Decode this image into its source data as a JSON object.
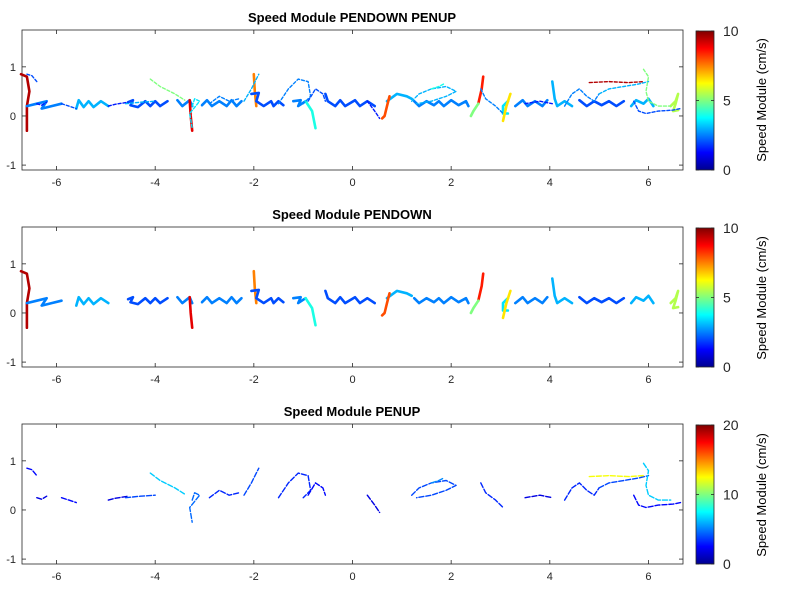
{
  "chart_data": [
    {
      "type": "scatter",
      "title": "Speed Module PENDOWN PENUP",
      "xlim": [
        -6.7,
        6.7
      ],
      "ylim": [
        -1.1,
        1.75
      ],
      "xticks": [
        -6,
        -4,
        -2,
        0,
        2,
        4,
        6
      ],
      "yticks": [
        -1,
        0,
        1
      ],
      "grid": false,
      "legend": "none",
      "colorbar": {
        "label": "Speed Module (cm/s)",
        "min": 0,
        "max": 10,
        "ticks": [
          0,
          5,
          10
        ],
        "colormap": "jet"
      },
      "strokes": "pendown+penup"
    },
    {
      "type": "scatter",
      "title": "Speed Module PENDOWN",
      "xlim": [
        -6.7,
        6.7
      ],
      "ylim": [
        -1.1,
        1.75
      ],
      "xticks": [
        -6,
        -4,
        -2,
        0,
        2,
        4,
        6
      ],
      "yticks": [
        -1,
        0,
        1
      ],
      "grid": false,
      "legend": "none",
      "colorbar": {
        "label": "Speed Module (cm/s)",
        "min": 0,
        "max": 10,
        "ticks": [
          0,
          5,
          10
        ],
        "colormap": "jet"
      },
      "strokes": "pendown"
    },
    {
      "type": "scatter",
      "title": "Speed Module PENUP",
      "xlim": [
        -6.7,
        6.7
      ],
      "ylim": [
        -1.1,
        1.75
      ],
      "xticks": [
        -6,
        -4,
        -2,
        0,
        2,
        4,
        6
      ],
      "yticks": [
        -1,
        0,
        1
      ],
      "grid": false,
      "legend": "none",
      "colorbar": {
        "label": "Speed Module (cm/s)",
        "min": 0,
        "max": 20,
        "ticks": [
          0,
          10,
          20
        ],
        "colormap": "jet"
      },
      "strokes": "penup"
    }
  ],
  "pendown_strokes": [
    {
      "speed": 9.5,
      "points": [
        [
          -6.72,
          0.85
        ],
        [
          -6.6,
          0.8
        ],
        [
          -6.55,
          0.5
        ],
        [
          -6.6,
          0.2
        ],
        [
          -6.6,
          -0.3
        ]
      ]
    },
    {
      "speed": 2.5,
      "points": [
        [
          -6.6,
          0.2
        ],
        [
          -6.4,
          0.25
        ],
        [
          -6.2,
          0.3
        ],
        [
          -6.3,
          0.15
        ],
        [
          -6.1,
          0.2
        ],
        [
          -5.9,
          0.25
        ]
      ]
    },
    {
      "speed": 3.0,
      "points": [
        [
          -5.6,
          0.15
        ],
        [
          -5.55,
          0.32
        ],
        [
          -5.45,
          0.18
        ],
        [
          -5.35,
          0.3
        ],
        [
          -5.25,
          0.18
        ],
        [
          -5.1,
          0.3
        ],
        [
          -4.95,
          0.2
        ]
      ]
    },
    {
      "speed": 2.0,
      "points": [
        [
          -4.55,
          0.28
        ],
        [
          -4.45,
          0.32
        ],
        [
          -4.5,
          0.22
        ],
        [
          -4.35,
          0.18
        ],
        [
          -4.2,
          0.3
        ],
        [
          -4.1,
          0.2
        ],
        [
          -4.0,
          0.3
        ],
        [
          -3.9,
          0.2
        ],
        [
          -3.75,
          0.3
        ]
      ]
    },
    {
      "speed": 2.5,
      "points": [
        [
          -3.55,
          0.32
        ],
        [
          -3.45,
          0.2
        ],
        [
          -3.3,
          0.32
        ],
        [
          -3.25,
          0.2
        ]
      ]
    },
    {
      "speed": 9.0,
      "points": [
        [
          -3.3,
          0.32
        ],
        [
          -3.28,
          0.0
        ],
        [
          -3.25,
          -0.3
        ]
      ]
    },
    {
      "speed": 2.5,
      "points": [
        [
          -3.05,
          0.22
        ],
        [
          -2.95,
          0.32
        ],
        [
          -2.85,
          0.2
        ],
        [
          -2.7,
          0.3
        ],
        [
          -2.55,
          0.2
        ],
        [
          -2.45,
          0.32
        ],
        [
          -2.35,
          0.2
        ],
        [
          -2.25,
          0.3
        ]
      ]
    },
    {
      "speed": 7.5,
      "points": [
        [
          -2.0,
          0.85
        ],
        [
          -1.98,
          0.5
        ],
        [
          -1.95,
          0.2
        ]
      ]
    },
    {
      "speed": 2.0,
      "points": [
        [
          -2.05,
          0.45
        ],
        [
          -1.9,
          0.47
        ],
        [
          -1.95,
          0.3
        ],
        [
          -1.8,
          0.2
        ],
        [
          -1.65,
          0.3
        ],
        [
          -1.6,
          0.2
        ],
        [
          -1.5,
          0.3
        ],
        [
          -1.4,
          0.22
        ]
      ]
    },
    {
      "speed": 2.5,
      "points": [
        [
          -1.2,
          0.3
        ],
        [
          -1.05,
          0.32
        ],
        [
          -1.1,
          0.2
        ],
        [
          -0.95,
          0.3
        ]
      ]
    },
    {
      "speed": 4.0,
      "points": [
        [
          -0.95,
          0.3
        ],
        [
          -0.82,
          0.1
        ],
        [
          -0.75,
          -0.25
        ]
      ]
    },
    {
      "speed": 2.0,
      "points": [
        [
          -0.55,
          0.45
        ],
        [
          -0.5,
          0.3
        ],
        [
          -0.35,
          0.2
        ],
        [
          -0.25,
          0.32
        ],
        [
          -0.15,
          0.2
        ],
        [
          0.05,
          0.32
        ],
        [
          0.15,
          0.2
        ],
        [
          0.3,
          0.3
        ],
        [
          0.45,
          0.2
        ]
      ]
    },
    {
      "speed": 3.0,
      "points": [
        [
          0.7,
          0.3
        ],
        [
          0.9,
          0.45
        ],
        [
          1.1,
          0.4
        ],
        [
          1.2,
          0.35
        ]
      ]
    },
    {
      "speed": 8.0,
      "points": [
        [
          0.75,
          0.4
        ],
        [
          0.7,
          0.2
        ],
        [
          0.65,
          0.0
        ],
        [
          0.6,
          -0.05
        ]
      ]
    },
    {
      "speed": 2.5,
      "points": [
        [
          1.25,
          0.3
        ],
        [
          1.35,
          0.2
        ],
        [
          1.5,
          0.3
        ],
        [
          1.65,
          0.22
        ],
        [
          1.75,
          0.3
        ],
        [
          1.85,
          0.2
        ],
        [
          2.0,
          0.32
        ],
        [
          2.15,
          0.22
        ],
        [
          2.3,
          0.3
        ],
        [
          2.35,
          0.2
        ]
      ]
    },
    {
      "speed": 8.5,
      "points": [
        [
          2.55,
          0.25
        ],
        [
          2.62,
          0.55
        ],
        [
          2.65,
          0.8
        ]
      ]
    },
    {
      "speed": 5.0,
      "points": [
        [
          2.55,
          0.25
        ],
        [
          2.45,
          0.1
        ],
        [
          2.4,
          0.0
        ]
      ]
    },
    {
      "speed": 3.5,
      "points": [
        [
          3.15,
          0.3
        ],
        [
          3.05,
          0.2
        ],
        [
          3.05,
          0.05
        ],
        [
          3.15,
          0.05
        ]
      ]
    },
    {
      "speed": 6.5,
      "points": [
        [
          3.2,
          0.45
        ],
        [
          3.12,
          0.2
        ],
        [
          3.05,
          -0.1
        ]
      ]
    },
    {
      "speed": 2.5,
      "points": [
        [
          3.3,
          0.2
        ],
        [
          3.45,
          0.32
        ],
        [
          3.55,
          0.2
        ],
        [
          3.7,
          0.3
        ],
        [
          3.85,
          0.2
        ],
        [
          3.95,
          0.32
        ]
      ]
    },
    {
      "speed": 3.0,
      "points": [
        [
          4.05,
          0.7
        ],
        [
          4.1,
          0.35
        ],
        [
          4.15,
          0.2
        ],
        [
          4.3,
          0.3
        ],
        [
          4.45,
          0.2
        ]
      ]
    },
    {
      "speed": 2.0,
      "points": [
        [
          4.6,
          0.32
        ],
        [
          4.75,
          0.2
        ],
        [
          4.9,
          0.3
        ],
        [
          5.05,
          0.22
        ],
        [
          5.2,
          0.3
        ],
        [
          5.35,
          0.2
        ],
        [
          5.5,
          0.3
        ]
      ]
    },
    {
      "speed": 3.0,
      "points": [
        [
          5.65,
          0.2
        ],
        [
          5.75,
          0.32
        ],
        [
          5.9,
          0.25
        ],
        [
          6.0,
          0.35
        ],
        [
          6.1,
          0.2
        ]
      ]
    },
    {
      "speed": 5.5,
      "points": [
        [
          6.45,
          0.2
        ],
        [
          6.55,
          0.3
        ],
        [
          6.6,
          0.45
        ],
        [
          6.55,
          0.25
        ],
        [
          6.5,
          0.1
        ],
        [
          6.6,
          0.12
        ]
      ]
    }
  ],
  "penup_strokes": [
    {
      "speed": 2.0,
      "points": [
        [
          -6.6,
          0.85
        ],
        [
          -6.5,
          0.82
        ],
        [
          -6.4,
          0.7
        ]
      ]
    },
    {
      "speed": 1.5,
      "points": [
        [
          -6.4,
          0.25
        ],
        [
          -6.3,
          0.22
        ],
        [
          -6.2,
          0.28
        ]
      ]
    },
    {
      "speed": 2.0,
      "points": [
        [
          -5.9,
          0.25
        ],
        [
          -5.75,
          0.2
        ],
        [
          -5.6,
          0.15
        ]
      ]
    },
    {
      "speed": 1.5,
      "points": [
        [
          -4.95,
          0.2
        ],
        [
          -4.8,
          0.24
        ],
        [
          -4.55,
          0.28
        ]
      ]
    },
    {
      "speed": 3.0,
      "points": [
        [
          -4.6,
          0.25
        ],
        [
          -4.3,
          0.28
        ],
        [
          -4.0,
          0.3
        ]
      ]
    },
    {
      "speed": 5.0,
      "points": [
        [
          -4.1,
          0.75
        ],
        [
          -3.9,
          0.6
        ],
        [
          -3.6,
          0.45
        ],
        [
          -3.4,
          0.32
        ]
      ]
    },
    {
      "speed": 3.5,
      "points": [
        [
          -3.25,
          0.2
        ],
        [
          -3.2,
          0.35
        ],
        [
          -3.1,
          0.3
        ],
        [
          -3.3,
          0.05
        ],
        [
          -3.25,
          -0.25
        ]
      ]
    },
    {
      "speed": 2.5,
      "points": [
        [
          -2.9,
          0.25
        ],
        [
          -2.7,
          0.4
        ],
        [
          -2.5,
          0.3
        ],
        [
          -2.3,
          0.35
        ]
      ]
    },
    {
      "speed": 3.0,
      "points": [
        [
          -2.2,
          0.3
        ],
        [
          -2.05,
          0.55
        ],
        [
          -1.95,
          0.75
        ],
        [
          -1.9,
          0.85
        ]
      ]
    },
    {
      "speed": 2.5,
      "points": [
        [
          -1.5,
          0.25
        ],
        [
          -1.3,
          0.55
        ],
        [
          -1.1,
          0.75
        ],
        [
          -0.9,
          0.7
        ],
        [
          -0.85,
          0.4
        ],
        [
          -1.0,
          0.25
        ]
      ]
    },
    {
      "speed": 2.0,
      "points": [
        [
          -0.9,
          0.3
        ],
        [
          -0.75,
          0.55
        ],
        [
          -0.6,
          0.45
        ],
        [
          -0.55,
          0.3
        ]
      ]
    },
    {
      "speed": 1.5,
      "points": [
        [
          0.3,
          0.3
        ],
        [
          0.45,
          0.1
        ],
        [
          0.55,
          -0.05
        ]
      ]
    },
    {
      "speed": 3.0,
      "points": [
        [
          1.2,
          0.3
        ],
        [
          1.35,
          0.45
        ],
        [
          1.6,
          0.55
        ],
        [
          1.9,
          0.6
        ],
        [
          2.1,
          0.5
        ],
        [
          1.9,
          0.4
        ],
        [
          1.6,
          0.3
        ],
        [
          1.3,
          0.25
        ]
      ]
    },
    {
      "speed": 4.0,
      "points": [
        [
          1.6,
          0.55
        ],
        [
          1.75,
          0.6
        ],
        [
          1.85,
          0.65
        ]
      ]
    },
    {
      "speed": 2.5,
      "points": [
        [
          2.6,
          0.55
        ],
        [
          2.7,
          0.35
        ],
        [
          2.9,
          0.2
        ],
        [
          3.05,
          0.05
        ]
      ]
    },
    {
      "speed": 1.5,
      "points": [
        [
          3.5,
          0.25
        ],
        [
          3.8,
          0.3
        ],
        [
          4.05,
          0.25
        ]
      ]
    },
    {
      "speed": 2.5,
      "points": [
        [
          4.3,
          0.2
        ],
        [
          4.45,
          0.45
        ],
        [
          4.6,
          0.55
        ],
        [
          4.75,
          0.4
        ],
        [
          4.9,
          0.3
        ],
        [
          5.0,
          0.45
        ]
      ]
    },
    {
      "speed": 3.0,
      "points": [
        [
          5.0,
          0.45
        ],
        [
          5.2,
          0.55
        ],
        [
          5.5,
          0.6
        ],
        [
          5.8,
          0.65
        ],
        [
          6.0,
          0.7
        ]
      ]
    },
    {
      "speed": 9.5,
      "points": [
        [
          4.8,
          0.68
        ],
        [
          5.2,
          0.7
        ],
        [
          5.6,
          0.68
        ],
        [
          5.9,
          0.7
        ]
      ]
    },
    {
      "speed": 5.0,
      "points": [
        [
          5.9,
          0.95
        ],
        [
          6.0,
          0.8
        ],
        [
          5.95,
          0.5
        ],
        [
          6.0,
          0.3
        ],
        [
          6.2,
          0.2
        ],
        [
          6.45,
          0.2
        ]
      ]
    },
    {
      "speed": 2.0,
      "points": [
        [
          5.7,
          0.3
        ],
        [
          5.8,
          0.1
        ],
        [
          5.95,
          0.05
        ],
        [
          6.2,
          0.1
        ],
        [
          6.5,
          0.12
        ],
        [
          6.65,
          0.15
        ]
      ]
    }
  ]
}
